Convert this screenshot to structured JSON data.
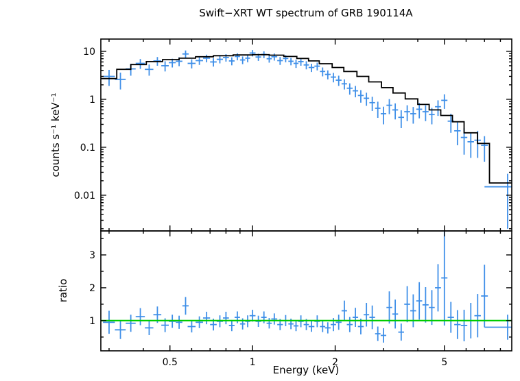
{
  "title": "Swift−XRT WT spectrum of GRB 190114A",
  "colors": {
    "data": "#3f8fe8",
    "model": "#000000",
    "unity_line": "#00cc00",
    "axis": "#000000",
    "background": "#ffffff"
  },
  "chart_data": [
    {
      "type": "scatter",
      "title": "Swift−XRT WT spectrum of GRB 190114A",
      "xlabel": "",
      "ylabel": "counts s⁻¹ keV⁻¹",
      "xscale": "log",
      "yscale": "log",
      "xlim": [
        0.28,
        8.8
      ],
      "ylim": [
        0.0018,
        18
      ],
      "xticks": [
        0.5,
        1,
        2,
        5
      ],
      "yticks": [
        0.01,
        0.1,
        1,
        10
      ],
      "grid": false,
      "legend": "none",
      "series": [
        {
          "name": "spectrum-data-points",
          "type": "errorbar",
          "x": [
            0.3,
            0.33,
            0.36,
            0.39,
            0.42,
            0.45,
            0.48,
            0.51,
            0.54,
            0.57,
            0.6,
            0.64,
            0.68,
            0.72,
            0.76,
            0.8,
            0.84,
            0.88,
            0.92,
            0.96,
            1.0,
            1.05,
            1.1,
            1.15,
            1.2,
            1.26,
            1.32,
            1.38,
            1.44,
            1.5,
            1.57,
            1.64,
            1.72,
            1.8,
            1.88,
            1.97,
            2.06,
            2.16,
            2.26,
            2.37,
            2.48,
            2.6,
            2.73,
            2.86,
            3.0,
            3.15,
            3.31,
            3.48,
            3.66,
            3.85,
            4.05,
            4.27,
            4.5,
            4.74,
            5.0,
            5.28,
            5.58,
            5.9,
            6.24,
            6.61,
            7.0,
            8.5
          ],
          "xerr": [
            0.015,
            0.015,
            0.015,
            0.015,
            0.015,
            0.015,
            0.015,
            0.015,
            0.015,
            0.015,
            0.02,
            0.02,
            0.02,
            0.02,
            0.02,
            0.02,
            0.02,
            0.02,
            0.02,
            0.02,
            0.025,
            0.025,
            0.025,
            0.025,
            0.03,
            0.03,
            0.03,
            0.03,
            0.03,
            0.035,
            0.035,
            0.04,
            0.04,
            0.04,
            0.045,
            0.045,
            0.05,
            0.05,
            0.055,
            0.055,
            0.06,
            0.06,
            0.065,
            0.065,
            0.07,
            0.075,
            0.08,
            0.085,
            0.09,
            0.095,
            0.1,
            0.11,
            0.11,
            0.12,
            0.13,
            0.14,
            0.15,
            0.16,
            0.17,
            0.18,
            0.2,
            1.5
          ],
          "y": [
            3.0,
            2.6,
            4.3,
            5.6,
            4.2,
            6.3,
            5.0,
            5.8,
            6.2,
            8.8,
            5.6,
            6.4,
            7.2,
            6.0,
            6.8,
            7.4,
            6.3,
            7.8,
            6.6,
            7.2,
            9.2,
            7.6,
            8.6,
            7.0,
            7.7,
            6.4,
            7.1,
            6.2,
            5.6,
            6.1,
            5.2,
            4.6,
            4.9,
            3.8,
            3.3,
            2.9,
            2.5,
            2.1,
            1.7,
            1.5,
            1.2,
            1.05,
            0.85,
            0.65,
            0.5,
            0.75,
            0.6,
            0.42,
            0.55,
            0.5,
            0.62,
            0.55,
            0.48,
            0.7,
            0.95,
            0.35,
            0.22,
            0.16,
            0.13,
            0.14,
            0.11,
            0.015
          ],
          "yerr": [
            1.1,
            1.0,
            1.2,
            1.3,
            1.1,
            1.3,
            1.2,
            1.2,
            1.3,
            1.6,
            1.2,
            1.2,
            1.3,
            1.2,
            1.2,
            1.3,
            1.2,
            1.3,
            1.2,
            1.3,
            1.4,
            1.3,
            1.4,
            1.2,
            1.3,
            1.2,
            1.2,
            1.1,
            1.1,
            1.1,
            1.0,
            0.9,
            0.9,
            0.8,
            0.7,
            0.65,
            0.6,
            0.5,
            0.45,
            0.4,
            0.35,
            0.32,
            0.28,
            0.24,
            0.2,
            0.26,
            0.22,
            0.17,
            0.2,
            0.19,
            0.22,
            0.2,
            0.18,
            0.25,
            0.32,
            0.15,
            0.11,
            0.09,
            0.07,
            0.08,
            0.06,
            0.013
          ]
        },
        {
          "name": "fitted-model-histogram",
          "type": "step",
          "edges": [
            0.28,
            0.32,
            0.36,
            0.41,
            0.47,
            0.54,
            0.62,
            0.72,
            0.85,
            1.0,
            1.15,
            1.3,
            1.45,
            1.6,
            1.75,
            1.95,
            2.15,
            2.4,
            2.65,
            2.95,
            3.25,
            3.6,
            4.0,
            4.4,
            4.85,
            5.35,
            5.9,
            6.6,
            7.3,
            8.8
          ],
          "values": [
            2.7,
            4.2,
            5.3,
            6.1,
            6.7,
            7.2,
            7.7,
            8.1,
            8.4,
            8.5,
            8.3,
            7.8,
            7.1,
            6.3,
            5.5,
            4.6,
            3.8,
            3.0,
            2.3,
            1.75,
            1.35,
            1.02,
            0.78,
            0.6,
            0.46,
            0.34,
            0.2,
            0.12,
            0.018
          ]
        }
      ]
    },
    {
      "type": "scatter",
      "title": "",
      "xlabel": "Energy (keV)",
      "ylabel": "ratio",
      "xscale": "log",
      "yscale": "linear",
      "xlim": [
        0.28,
        8.8
      ],
      "ylim": [
        0.08,
        3.73
      ],
      "xticks": [
        0.5,
        1,
        2,
        5
      ],
      "yticks": [
        1,
        2,
        3
      ],
      "grid": false,
      "legend": "none",
      "series": [
        {
          "name": "ratio-data-points",
          "type": "errorbar",
          "x": [
            0.3,
            0.33,
            0.36,
            0.39,
            0.42,
            0.45,
            0.48,
            0.51,
            0.54,
            0.57,
            0.6,
            0.64,
            0.68,
            0.72,
            0.76,
            0.8,
            0.84,
            0.88,
            0.92,
            0.96,
            1.0,
            1.05,
            1.1,
            1.15,
            1.2,
            1.26,
            1.32,
            1.38,
            1.44,
            1.5,
            1.57,
            1.64,
            1.72,
            1.8,
            1.88,
            1.97,
            2.06,
            2.16,
            2.26,
            2.37,
            2.48,
            2.6,
            2.73,
            2.86,
            3.0,
            3.15,
            3.31,
            3.48,
            3.66,
            3.85,
            4.05,
            4.27,
            4.5,
            4.74,
            5.0,
            5.28,
            5.58,
            5.9,
            6.24,
            6.61,
            7.0,
            8.5
          ],
          "xerr": [
            0.015,
            0.015,
            0.015,
            0.015,
            0.015,
            0.015,
            0.015,
            0.015,
            0.015,
            0.015,
            0.02,
            0.02,
            0.02,
            0.02,
            0.02,
            0.02,
            0.02,
            0.02,
            0.02,
            0.02,
            0.025,
            0.025,
            0.025,
            0.025,
            0.03,
            0.03,
            0.03,
            0.03,
            0.03,
            0.035,
            0.035,
            0.04,
            0.04,
            0.04,
            0.045,
            0.045,
            0.05,
            0.05,
            0.055,
            0.055,
            0.06,
            0.06,
            0.065,
            0.065,
            0.07,
            0.075,
            0.08,
            0.085,
            0.09,
            0.095,
            0.1,
            0.11,
            0.11,
            0.12,
            0.13,
            0.14,
            0.15,
            0.16,
            0.17,
            0.18,
            0.2,
            1.5
          ],
          "y": [
            0.95,
            0.72,
            0.92,
            1.12,
            0.78,
            1.18,
            0.86,
            0.98,
            0.95,
            1.45,
            0.82,
            0.95,
            1.08,
            0.88,
            0.98,
            1.08,
            0.85,
            1.1,
            0.9,
            0.98,
            1.15,
            0.98,
            1.1,
            0.92,
            1.05,
            0.88,
            1.0,
            0.9,
            0.84,
            0.98,
            0.88,
            0.82,
            0.98,
            0.82,
            0.78,
            0.88,
            0.95,
            1.3,
            0.88,
            1.1,
            0.82,
            1.18,
            1.1,
            0.6,
            0.55,
            1.4,
            1.2,
            0.65,
            1.5,
            1.3,
            1.6,
            1.48,
            1.4,
            2.0,
            2.3,
            1.1,
            0.88,
            0.85,
            1.0,
            1.15,
            1.75,
            0.8
          ],
          "yerr": [
            0.35,
            0.28,
            0.26,
            0.26,
            0.22,
            0.25,
            0.21,
            0.2,
            0.2,
            0.27,
            0.18,
            0.18,
            0.19,
            0.18,
            0.18,
            0.19,
            0.17,
            0.18,
            0.17,
            0.18,
            0.18,
            0.17,
            0.18,
            0.16,
            0.17,
            0.17,
            0.17,
            0.16,
            0.16,
            0.18,
            0.17,
            0.16,
            0.18,
            0.17,
            0.17,
            0.2,
            0.23,
            0.31,
            0.23,
            0.29,
            0.24,
            0.36,
            0.36,
            0.22,
            0.22,
            0.49,
            0.44,
            0.26,
            0.55,
            0.5,
            0.57,
            0.54,
            0.53,
            0.72,
            1.45,
            0.47,
            0.44,
            0.48,
            0.54,
            0.66,
            0.95,
            0.38
          ]
        },
        {
          "name": "unity-reference-line",
          "type": "hline",
          "y": 1
        }
      ]
    }
  ]
}
